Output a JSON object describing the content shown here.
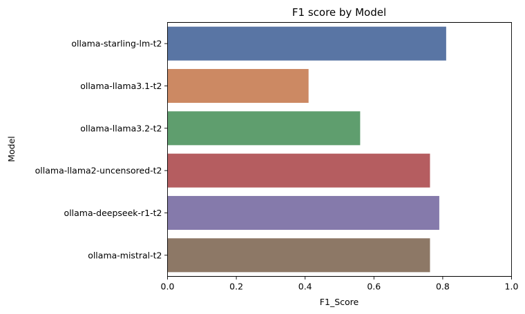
{
  "chart_data": {
    "type": "bar",
    "orientation": "horizontal",
    "title": "F1 score by Model",
    "xlabel": "F1_Score",
    "ylabel": "Model",
    "xlim": [
      0,
      1.0
    ],
    "xticks": [
      "0.0",
      "0.2",
      "0.4",
      "0.6",
      "0.8",
      "1.0"
    ],
    "grid": false,
    "categories": [
      "ollama-starling-lm-t2",
      "ollama-llama3.1-t2",
      "ollama-llama3.2-t2",
      "ollama-llama2-uncensored-t2",
      "ollama-deepseek-r1-t2",
      "ollama-mistral-t2"
    ],
    "values": [
      0.81,
      0.41,
      0.56,
      0.763,
      0.79,
      0.763
    ],
    "colors": [
      "#5975a4",
      "#cc8963",
      "#5f9e6e",
      "#b55d60",
      "#857aab",
      "#8d7866"
    ]
  }
}
